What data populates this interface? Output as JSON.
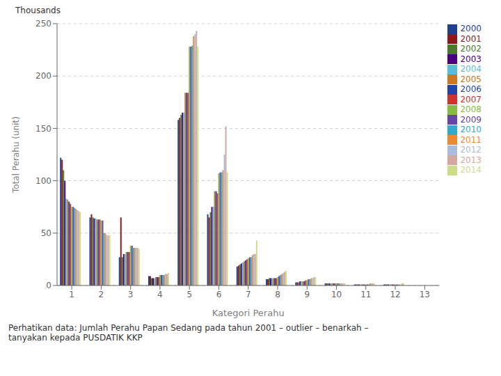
{
  "chart_data": {
    "type": "bar",
    "xlabel": "Kategori Perahu",
    "ylabel": "Total Perahu (unit)",
    "annotations": [
      "Thousands",
      "Perhatikan data: Jumlah Perahu Papan Sedang pada tahun 2001 – outlier – benarkah –\ntanyakan kepada PUSDATIK KKP"
    ],
    "categories": [
      "1",
      "2",
      "3",
      "4",
      "5",
      "6",
      "7",
      "8",
      "9",
      "10",
      "11",
      "12",
      "13"
    ],
    "series": [
      {
        "name": "2000",
        "color": "#1F3F8F",
        "values": [
          122,
          65,
          27,
          9,
          158,
          68,
          18,
          6,
          3,
          2,
          1,
          1,
          0
        ]
      },
      {
        "name": "2001",
        "color": "#8B1A1A",
        "values": [
          120,
          68,
          65,
          9,
          160,
          65,
          19,
          6,
          3,
          2,
          1,
          1,
          0
        ]
      },
      {
        "name": "2002",
        "color": "#4A7A2A",
        "values": [
          110,
          65,
          27,
          7,
          163,
          70,
          20,
          7,
          3,
          2,
          1,
          1,
          0
        ]
      },
      {
        "name": "2003",
        "color": "#4B0082",
        "values": [
          100,
          64,
          30,
          7,
          165,
          75,
          21,
          7,
          4,
          2,
          1,
          1,
          0
        ]
      },
      {
        "name": "2004",
        "color": "#5BBCD6",
        "values": [
          83,
          64,
          30,
          7,
          165,
          75,
          22,
          7,
          4,
          2,
          1,
          1,
          0
        ]
      },
      {
        "name": "2005",
        "color": "#CC7722",
        "values": [
          82,
          63,
          32,
          8,
          184,
          90,
          23,
          7,
          4,
          2,
          1,
          1,
          0
        ]
      },
      {
        "name": "2006",
        "color": "#2244AA",
        "values": [
          80,
          63,
          32,
          8,
          184,
          90,
          24,
          7,
          4,
          2,
          1,
          1,
          0
        ]
      },
      {
        "name": "2007",
        "color": "#CC3333",
        "values": [
          78,
          63,
          32,
          8,
          184,
          88,
          25,
          7,
          5,
          2,
          1,
          1,
          0
        ]
      },
      {
        "name": "2008",
        "color": "#88BB44",
        "values": [
          75,
          62,
          38,
          10,
          228,
          107,
          26,
          8,
          5,
          2,
          1,
          1,
          0
        ]
      },
      {
        "name": "2009",
        "color": "#6644AA",
        "values": [
          75,
          62,
          38,
          10,
          228,
          108,
          27,
          9,
          6,
          2,
          1,
          1,
          0
        ]
      },
      {
        "name": "2010",
        "color": "#33AACC",
        "values": [
          74,
          50,
          36,
          10,
          229,
          108,
          27,
          10,
          6,
          2,
          1,
          1,
          0
        ]
      },
      {
        "name": "2011",
        "color": "#EE8833",
        "values": [
          73,
          50,
          36,
          10,
          238,
          110,
          29,
          11,
          7,
          2,
          2,
          1,
          0
        ]
      },
      {
        "name": "2012",
        "color": "#AABBDD",
        "values": [
          72,
          48,
          36,
          11,
          240,
          125,
          30,
          12,
          7,
          2,
          2,
          1,
          0
        ]
      },
      {
        "name": "2013",
        "color": "#D4A8A0",
        "values": [
          71,
          48,
          36,
          11,
          243,
          152,
          30,
          13,
          8,
          2,
          2,
          2,
          0
        ]
      },
      {
        "name": "2014",
        "color": "#CCDD88",
        "values": [
          70,
          48,
          35,
          12,
          228,
          108,
          43,
          14,
          8,
          2,
          2,
          2,
          0
        ]
      }
    ],
    "ylim": [
      0,
      250
    ],
    "yticks": [
      0,
      50,
      100,
      150,
      200,
      250
    ],
    "grid": true,
    "legend": "right"
  }
}
